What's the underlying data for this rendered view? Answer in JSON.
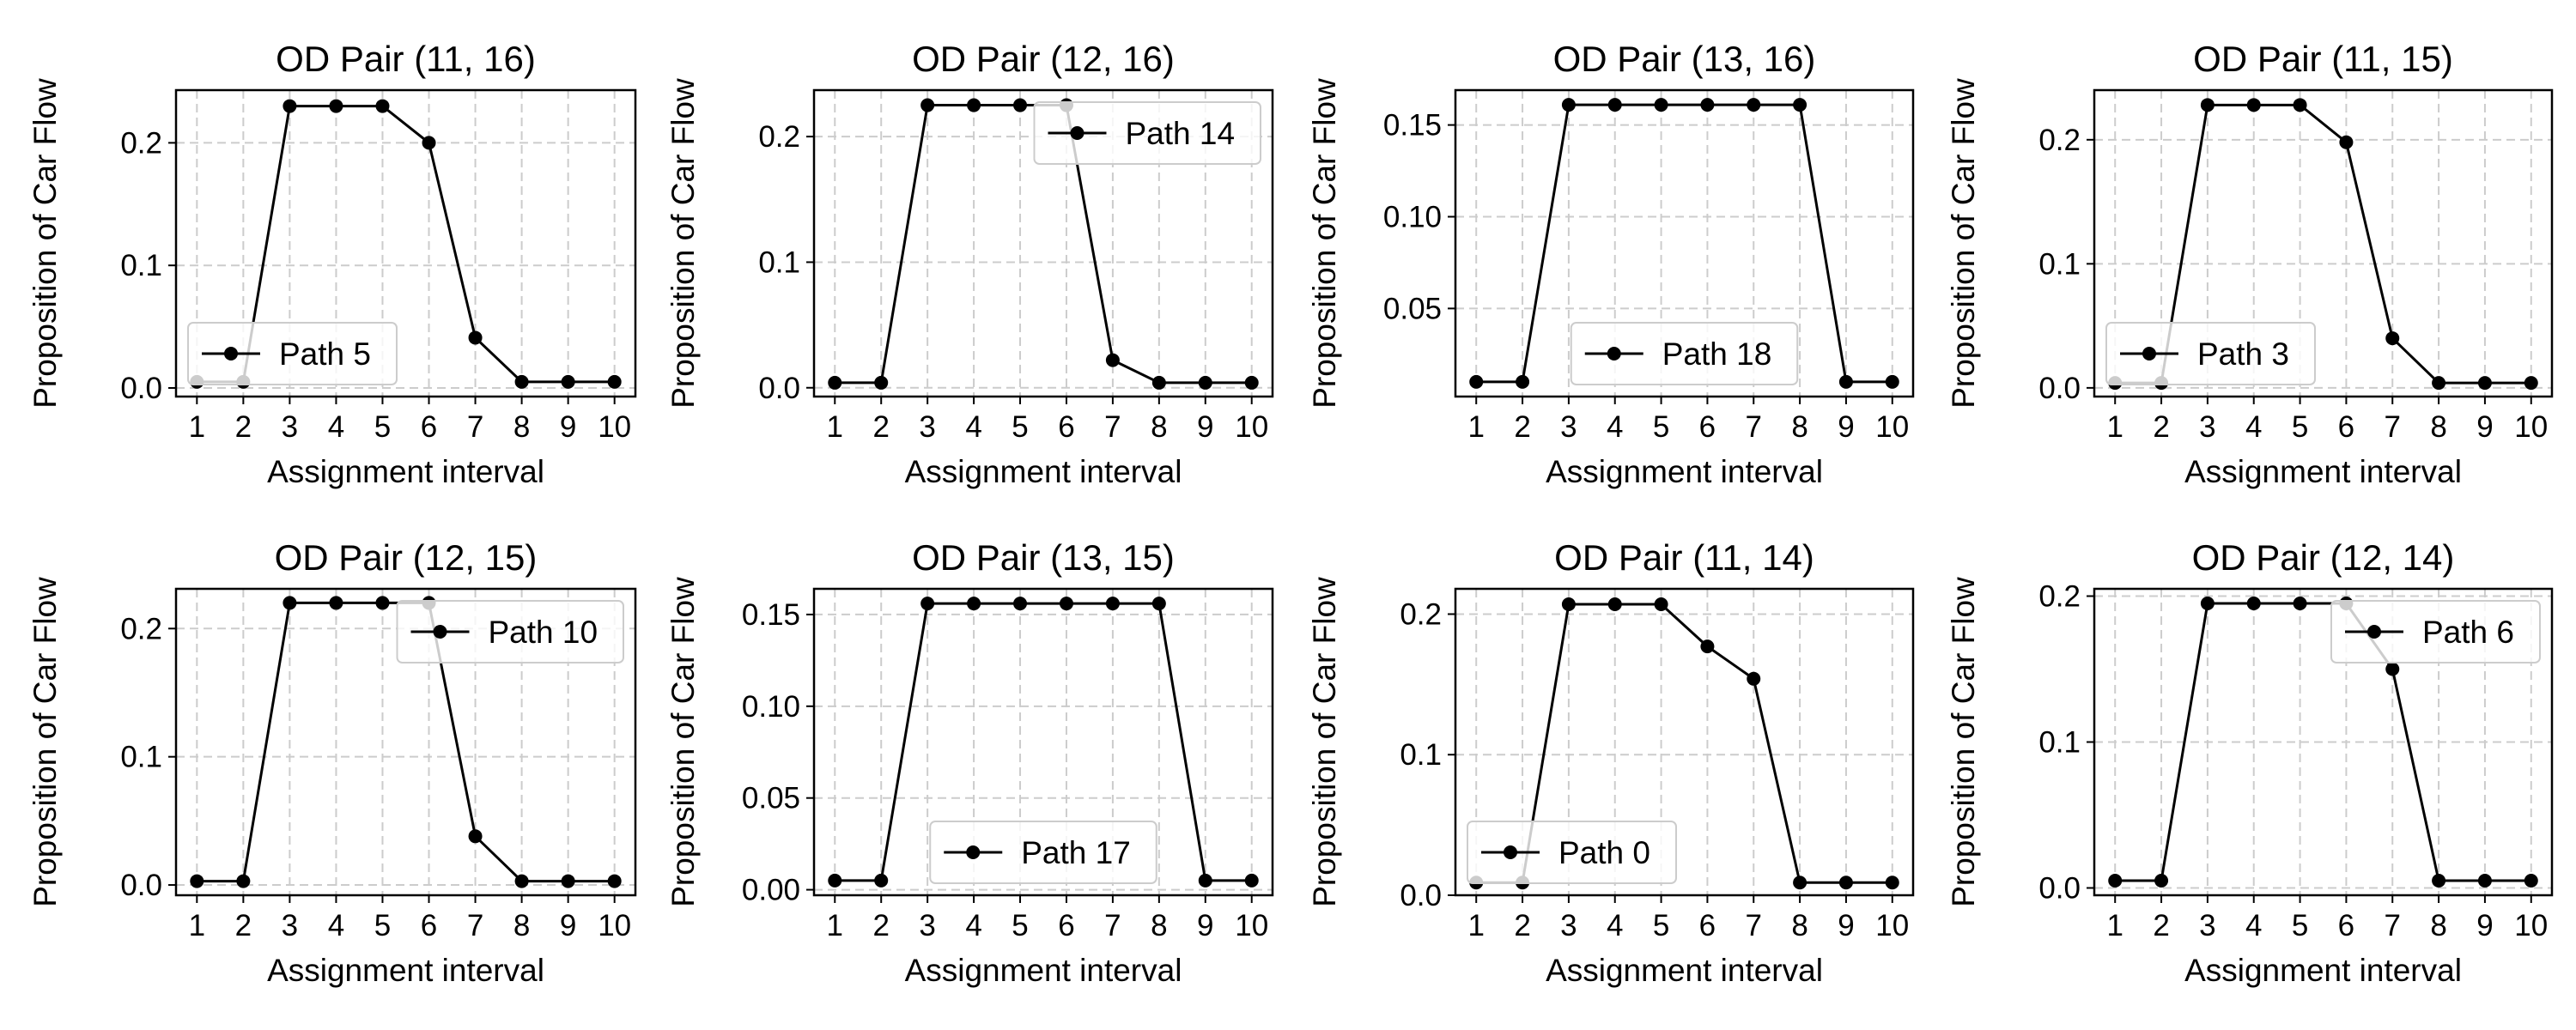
{
  "figure": {
    "line_color": "#000000",
    "grid_color": "#cccccc",
    "legend_border_color": "#cccccc"
  },
  "chart_data": [
    {
      "type": "line",
      "title": "OD Pair (11, 16)",
      "xlabel": "Assignment interval",
      "ylabel": "Proposition of Car Flow",
      "x": [
        1,
        2,
        3,
        4,
        5,
        6,
        7,
        8,
        9,
        10
      ],
      "ylim": [
        -0.007,
        0.243
      ],
      "yticks": [
        0.0,
        0.1,
        0.2
      ],
      "ytick_labels": [
        "0.0",
        "0.1",
        "0.2"
      ],
      "grid": true,
      "legend_loc": "lower-left",
      "series": [
        {
          "name": "Path 5",
          "values": [
            0.005,
            0.005,
            0.23,
            0.23,
            0.23,
            0.2,
            0.041,
            0.005,
            0.005,
            0.005
          ]
        }
      ]
    },
    {
      "type": "line",
      "title": "OD Pair (12, 16)",
      "xlabel": "Assignment interval",
      "ylabel": "Proposition of Car Flow",
      "x": [
        1,
        2,
        3,
        4,
        5,
        6,
        7,
        8,
        9,
        10
      ],
      "ylim": [
        -0.007,
        0.237
      ],
      "yticks": [
        0.0,
        0.1,
        0.2
      ],
      "ytick_labels": [
        "0.0",
        "0.1",
        "0.2"
      ],
      "grid": true,
      "legend_loc": "upper-right",
      "series": [
        {
          "name": "Path 14",
          "values": [
            0.004,
            0.004,
            0.225,
            0.225,
            0.225,
            0.225,
            0.022,
            0.004,
            0.004,
            0.004
          ]
        }
      ]
    },
    {
      "type": "line",
      "title": "OD Pair (13, 16)",
      "xlabel": "Assignment interval",
      "ylabel": "Proposition of Car Flow",
      "x": [
        1,
        2,
        3,
        4,
        5,
        6,
        7,
        8,
        9,
        10
      ],
      "ylim": [
        0.002,
        0.169
      ],
      "yticks": [
        0.05,
        0.1,
        0.15
      ],
      "ytick_labels": [
        "0.05",
        "0.10",
        "0.15"
      ],
      "grid": true,
      "legend_loc": "lower-center",
      "series": [
        {
          "name": "Path 18",
          "values": [
            0.01,
            0.01,
            0.161,
            0.161,
            0.161,
            0.161,
            0.161,
            0.161,
            0.01,
            0.01
          ]
        }
      ]
    },
    {
      "type": "line",
      "title": "OD Pair (11, 15)",
      "xlabel": "Assignment interval",
      "ylabel": "Proposition of Car Flow",
      "x": [
        1,
        2,
        3,
        4,
        5,
        6,
        7,
        8,
        9,
        10
      ],
      "ylim": [
        -0.007,
        0.24
      ],
      "yticks": [
        0.0,
        0.1,
        0.2
      ],
      "ytick_labels": [
        "0.0",
        "0.1",
        "0.2"
      ],
      "grid": true,
      "legend_loc": "lower-left",
      "series": [
        {
          "name": "Path 3",
          "values": [
            0.004,
            0.004,
            0.228,
            0.228,
            0.228,
            0.198,
            0.04,
            0.004,
            0.004,
            0.004
          ]
        }
      ]
    },
    {
      "type": "line",
      "title": "OD Pair (12, 15)",
      "xlabel": "Assignment interval",
      "ylabel": "Proposition of Car Flow",
      "x": [
        1,
        2,
        3,
        4,
        5,
        6,
        7,
        8,
        9,
        10
      ],
      "ylim": [
        -0.008,
        0.231
      ],
      "yticks": [
        0.0,
        0.1,
        0.2
      ],
      "ytick_labels": [
        "0.0",
        "0.1",
        "0.2"
      ],
      "grid": true,
      "legend_loc": "upper-right",
      "series": [
        {
          "name": "Path 10",
          "values": [
            0.003,
            0.003,
            0.22,
            0.22,
            0.22,
            0.22,
            0.038,
            0.003,
            0.003,
            0.003
          ]
        }
      ]
    },
    {
      "type": "line",
      "title": "OD Pair (13, 15)",
      "xlabel": "Assignment interval",
      "ylabel": "Proposition of Car Flow",
      "x": [
        1,
        2,
        3,
        4,
        5,
        6,
        7,
        8,
        9,
        10
      ],
      "ylim": [
        -0.003,
        0.164
      ],
      "yticks": [
        0.0,
        0.05,
        0.1,
        0.15
      ],
      "ytick_labels": [
        "0.00",
        "0.05",
        "0.10",
        "0.15"
      ],
      "grid": true,
      "legend_loc": "lower-center",
      "series": [
        {
          "name": "Path 17",
          "values": [
            0.005,
            0.005,
            0.156,
            0.156,
            0.156,
            0.156,
            0.156,
            0.156,
            0.005,
            0.005
          ]
        }
      ]
    },
    {
      "type": "line",
      "title": "OD Pair (11, 14)",
      "xlabel": "Assignment interval",
      "ylabel": "Proposition of Car Flow",
      "x": [
        1,
        2,
        3,
        4,
        5,
        6,
        7,
        8,
        9,
        10
      ],
      "ylim": [
        0.0,
        0.218
      ],
      "yticks": [
        0.0,
        0.1,
        0.2
      ],
      "ytick_labels": [
        "0.0",
        "0.1",
        "0.2"
      ],
      "grid": true,
      "legend_loc": "lower-left",
      "series": [
        {
          "name": "Path 0",
          "values": [
            0.009,
            0.009,
            0.207,
            0.207,
            0.207,
            0.177,
            0.154,
            0.009,
            0.009,
            0.009
          ]
        }
      ]
    },
    {
      "type": "line",
      "title": "OD Pair (12, 14)",
      "xlabel": "Assignment interval",
      "ylabel": "Proposition of Car Flow",
      "x": [
        1,
        2,
        3,
        4,
        5,
        6,
        7,
        8,
        9,
        10
      ],
      "ylim": [
        -0.005,
        0.205
      ],
      "yticks": [
        0.0,
        0.1,
        0.2
      ],
      "ytick_labels": [
        "0.0",
        "0.1",
        "0.2"
      ],
      "grid": true,
      "legend_loc": "upper-right",
      "series": [
        {
          "name": "Path 6",
          "values": [
            0.005,
            0.005,
            0.195,
            0.195,
            0.195,
            0.195,
            0.15,
            0.005,
            0.005,
            0.005
          ]
        }
      ]
    }
  ]
}
